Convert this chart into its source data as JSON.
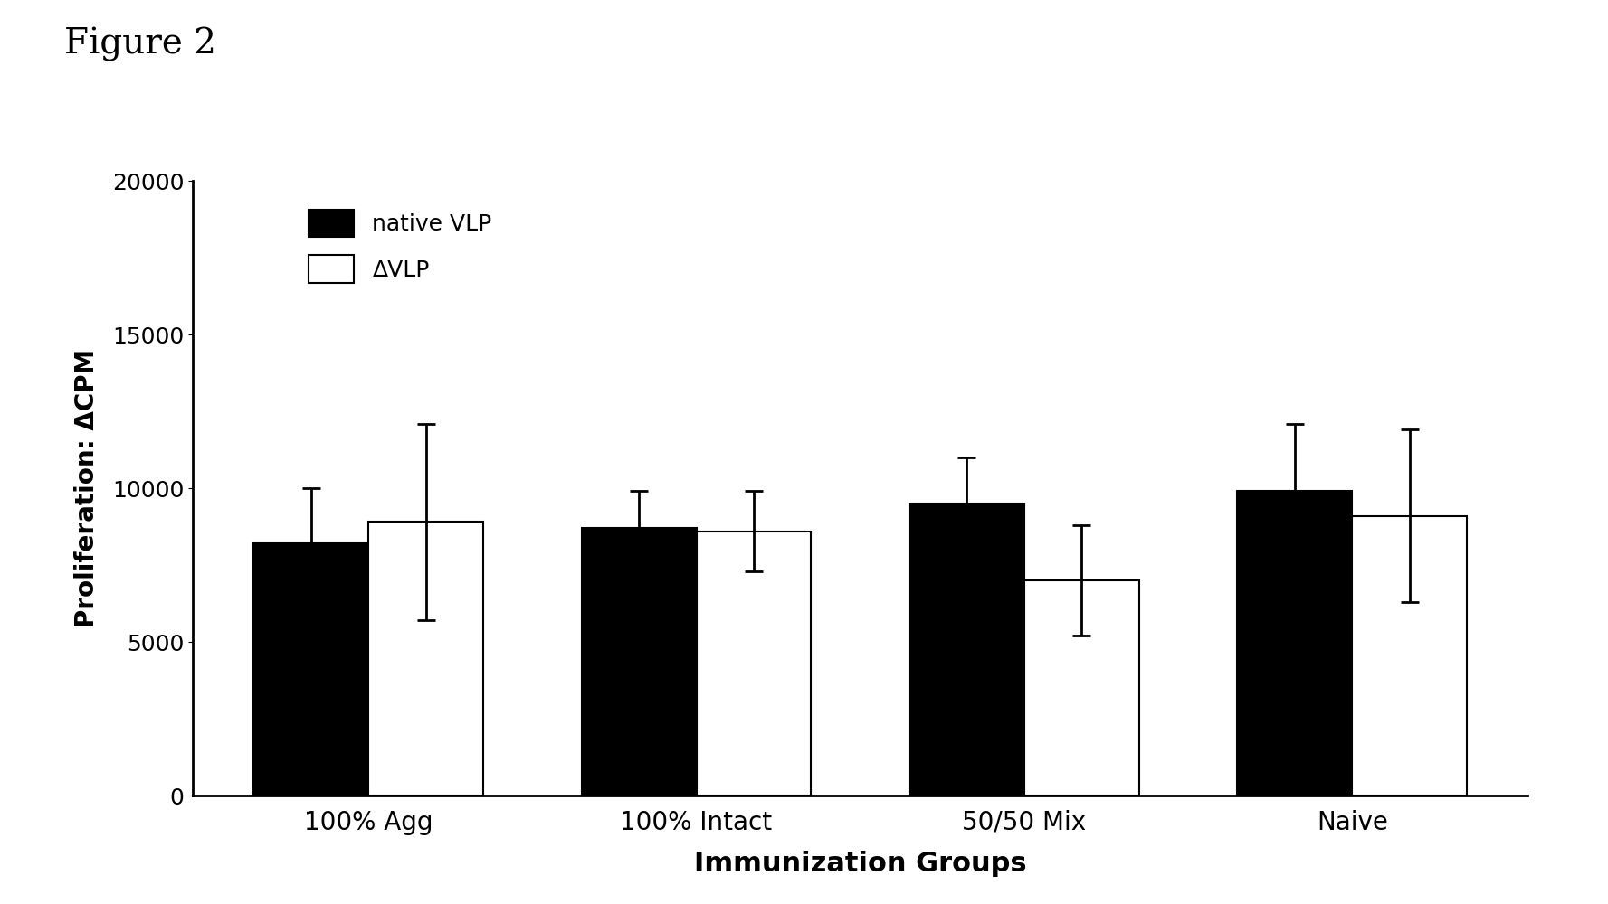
{
  "title": "Figure 2",
  "categories": [
    "100% Agg",
    "100% Intact",
    "50/50 Mix",
    "Naive"
  ],
  "native_vlp_values": [
    8200,
    8700,
    9500,
    9900
  ],
  "delta_vlp_values": [
    8900,
    8600,
    7000,
    9100
  ],
  "native_vlp_errors": [
    1800,
    1200,
    1500,
    2200
  ],
  "delta_vlp_errors": [
    3200,
    1300,
    1800,
    2800
  ],
  "ylabel": "Proliferation: ΔCPM",
  "xlabel": "Immunization Groups",
  "ylim": [
    0,
    20000
  ],
  "yticks": [
    0,
    5000,
    10000,
    15000,
    20000
  ],
  "legend_native": "native VLP",
  "legend_delta": "ΔVLP",
  "bar_width": 0.35,
  "native_color": "#000000",
  "delta_color": "#ffffff",
  "background_color": "#ffffff",
  "bar_edge_color": "#000000",
  "title_fontsize": 28,
  "axis_label_fontsize": 20,
  "tick_fontsize": 18,
  "legend_fontsize": 18
}
